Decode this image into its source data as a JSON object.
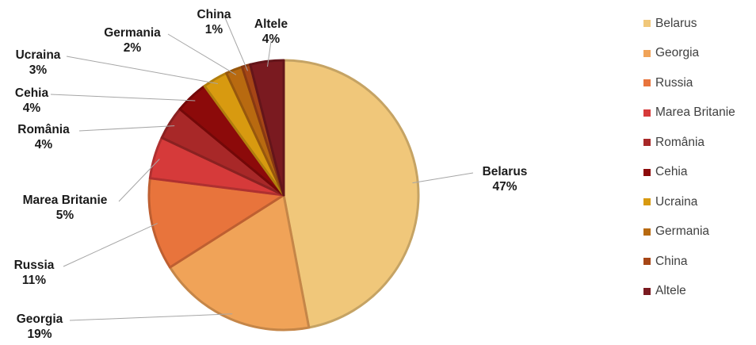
{
  "chart_data": {
    "type": "pie",
    "slices": [
      {
        "name": "Belarus",
        "value": 47,
        "label": "47%",
        "color": "#f0c77a"
      },
      {
        "name": "Georgia",
        "value": 19,
        "label": "19%",
        "color": "#f0a358"
      },
      {
        "name": "Russia",
        "value": 11,
        "label": "11%",
        "color": "#e8743c"
      },
      {
        "name": "Marea Britanie",
        "value": 5,
        "label": "5%",
        "color": "#d63a3a"
      },
      {
        "name": "România",
        "value": 4,
        "label": "4%",
        "color": "#a82828"
      },
      {
        "name": "Cehia",
        "value": 4,
        "label": "4%",
        "color": "#8c0a0a"
      },
      {
        "name": "Ucraina",
        "value": 3,
        "label": "3%",
        "color": "#d89a10"
      },
      {
        "name": "Germania",
        "value": 2,
        "label": "2%",
        "color": "#b86a10"
      },
      {
        "name": "China",
        "value": 1,
        "label": "1%",
        "color": "#a64616"
      },
      {
        "name": "Altele",
        "value": 4,
        "label": "4%",
        "color": "#7a1a20"
      }
    ],
    "legend_position": "right",
    "start": "12 o'clock, clockwise"
  }
}
